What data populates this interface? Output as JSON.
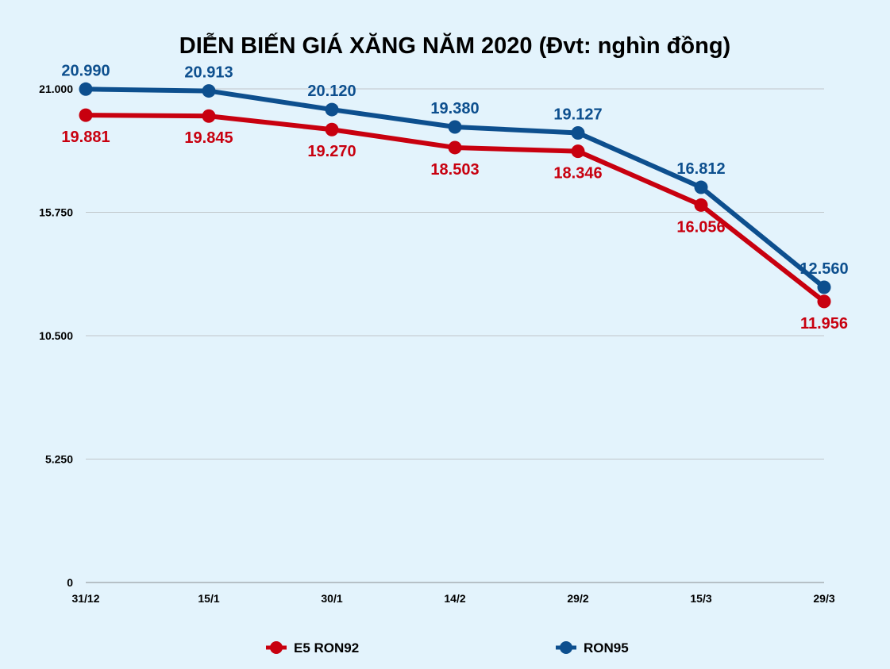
{
  "chart_data": {
    "type": "line",
    "title": "DIỄN BIẾN GIÁ XĂNG NĂM 2020 (Đvt: nghìn đồng)",
    "xlabel": "",
    "ylabel": "",
    "categories": [
      "31/12",
      "15/1",
      "30/1",
      "14/2",
      "29/2",
      "15/3",
      "29/3"
    ],
    "ylim": [
      0,
      21000
    ],
    "yticks": [
      0,
      5250,
      10500,
      15750,
      21000
    ],
    "ytick_labels": [
      "0",
      "5.250",
      "10.500",
      "15.750",
      "21.000"
    ],
    "grid": true,
    "legend_position": "bottom",
    "series": [
      {
        "name": "E5 RON92",
        "color": "#c8000f",
        "label_position": "below",
        "values": [
          19881,
          19845,
          19270,
          18503,
          18346,
          16056,
          11956
        ],
        "labels": [
          "19.881",
          "19.845",
          "19.270",
          "18.503",
          "18.346",
          "16.056",
          "11.956"
        ]
      },
      {
        "name": "RON95",
        "color": "#0d4f8e",
        "label_position": "above",
        "values": [
          20990,
          20913,
          20120,
          19380,
          19127,
          16812,
          12560
        ],
        "labels": [
          "20.990",
          "20.913",
          "20.120",
          "19.380",
          "19.127",
          "16.812",
          "12.560"
        ]
      }
    ]
  }
}
